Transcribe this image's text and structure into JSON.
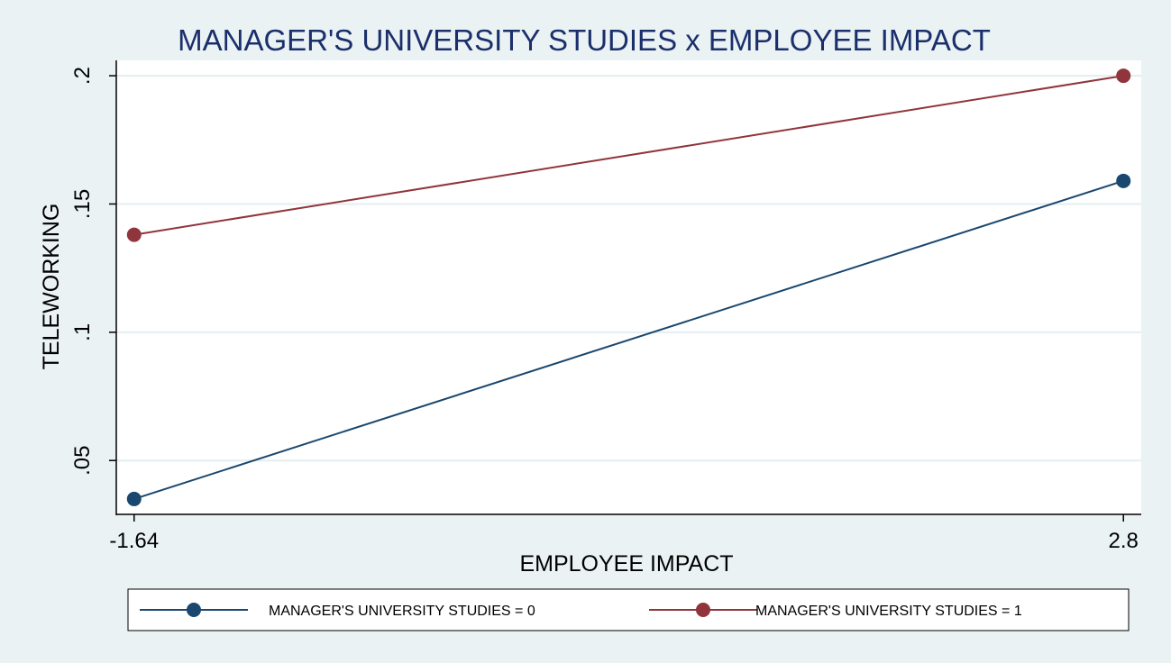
{
  "chart_data": {
    "type": "line",
    "title": "MANAGER'S UNIVERSITY STUDIES x EMPLOYEE IMPACT",
    "xlabel": "EMPLOYEE IMPACT",
    "ylabel": "TELEWORKING",
    "x": [
      -1.64,
      2.8
    ],
    "x_tick_labels": [
      "-1.64",
      "2.8"
    ],
    "y_ticks": [
      0.05,
      0.1,
      0.15,
      0.2
    ],
    "y_tick_labels": [
      ".05",
      ".1",
      ".15",
      ".2"
    ],
    "xlim": [
      -1.72,
      2.88
    ],
    "ylim": [
      0.029,
      0.206
    ],
    "grid": true,
    "legend_position": "bottom",
    "series": [
      {
        "name": "MANAGER'S UNIVERSITY STUDIES = 0",
        "color": "#1a476f",
        "values": [
          0.035,
          0.159
        ]
      },
      {
        "name": "MANAGER'S UNIVERSITY STUDIES = 1",
        "color": "#90353b",
        "values": [
          0.138,
          0.2
        ]
      }
    ]
  }
}
